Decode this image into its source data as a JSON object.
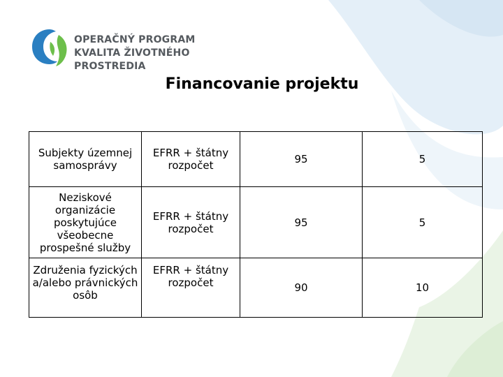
{
  "header": {
    "logo_line1": "OPERAČNÝ PROGRAM",
    "logo_line2": "KVALITA ŽIVOTNÉHO PROSTREDIA"
  },
  "page_title": "Financovanie projektu",
  "table": {
    "rows": [
      {
        "subject": "Subjekty územnej samosprávy",
        "source": "EFRR + štátny rozpočet",
        "col3": "95",
        "col4": "5"
      },
      {
        "subject": "Neziskové organizácie poskytujúce všeobecne prospešné služby",
        "source": "EFRR + štátny rozpočet",
        "col3": "95",
        "col4": "5"
      },
      {
        "subject": "Združenia fyzických a/alebo právnických osôb",
        "source": "EFRR + štátny rozpočet",
        "col3": "90",
        "col4": "10"
      }
    ]
  },
  "colors": {
    "logo_blue": "#2a7fc1",
    "logo_green": "#6dbf4b",
    "logo_text": "#555a5f",
    "bg_blue": "#e3eef7",
    "bg_green": "#eaf3e3"
  },
  "icons": {
    "logo": "leaf-drop-logo-icon"
  }
}
